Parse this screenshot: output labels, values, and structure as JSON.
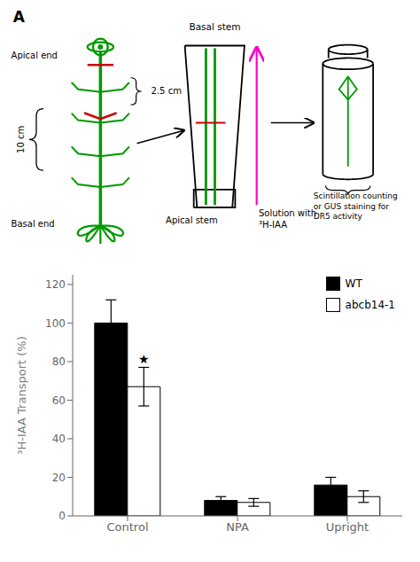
{
  "chart_data": {
    "type": "bar",
    "categories": [
      "Control",
      "NPA",
      "Upright"
    ],
    "series": [
      {
        "name": "WT",
        "color": "#000000",
        "values": [
          100,
          8,
          16
        ],
        "errors": [
          12,
          2,
          4
        ]
      },
      {
        "name": "abcb14-1",
        "color": "#ffffff",
        "values": [
          67,
          7,
          10
        ],
        "errors": [
          10,
          2,
          3
        ]
      }
    ],
    "ylabel": "³H-IAA Transport (%)",
    "ylim": [
      0,
      125
    ],
    "yticks": [
      0,
      20,
      40,
      60,
      80,
      100,
      120
    ],
    "grid": false,
    "legend": "upper right",
    "annotations": [
      {
        "text": "A"
      },
      {
        "text": "10 cm"
      },
      {
        "text": "2.5 cm"
      },
      {
        "text": "Apical end"
      },
      {
        "text": "Basal end"
      },
      {
        "text": "Basal stem"
      },
      {
        "text": "Apical stem"
      },
      {
        "text": "Solution with"
      },
      {
        "text": "³H-IAA"
      },
      {
        "text": "Scintillation counting"
      },
      {
        "text": "or GUS staining for"
      },
      {
        "text": "DR5 activity"
      },
      {
        "text": "★",
        "category": "Control",
        "series": "abcb14-1"
      }
    ]
  }
}
